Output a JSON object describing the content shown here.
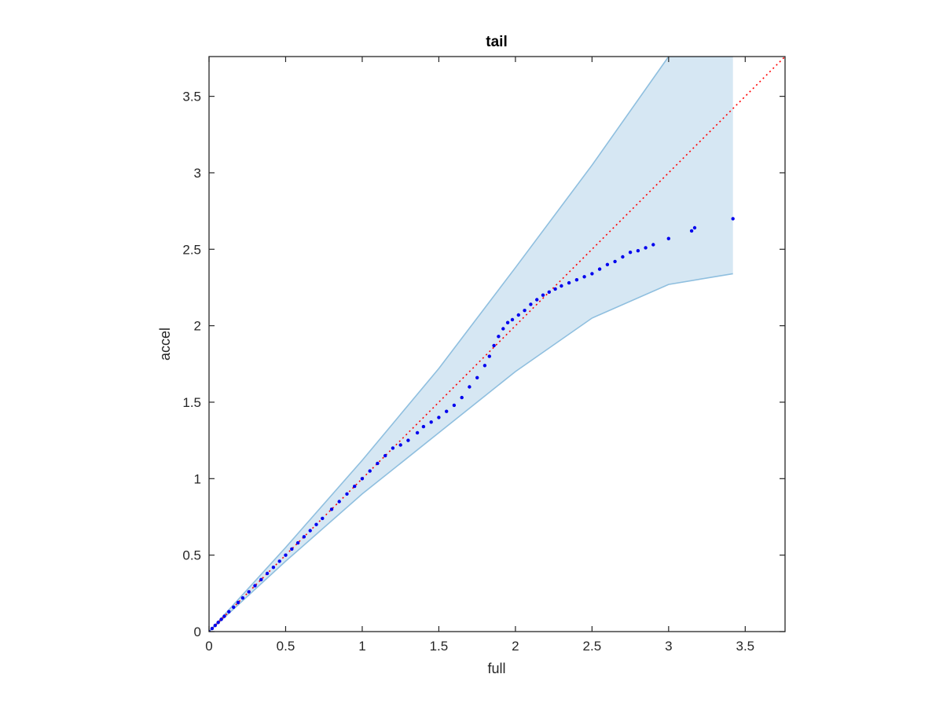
{
  "chart_data": {
    "type": "scatter",
    "title": "tail",
    "xlabel": "full",
    "ylabel": "accel",
    "xlim": [
      0,
      3.76
    ],
    "ylim": [
      0,
      3.76
    ],
    "xticks": [
      0,
      0.5,
      1,
      1.5,
      2,
      2.5,
      3,
      3.5
    ],
    "yticks": [
      0,
      0.5,
      1,
      1.5,
      2,
      2.5,
      3,
      3.5
    ],
    "xtick_labels": [
      "0",
      "0.5",
      "1",
      "1.5",
      "2",
      "2.5",
      "3",
      "3.5"
    ],
    "ytick_labels": [
      "0",
      "0.5",
      "1",
      "1.5",
      "2",
      "2.5",
      "3",
      "3.5"
    ],
    "grid": false,
    "reference_line": {
      "style": "dotted",
      "color": "#ff0000",
      "slope": 1
    },
    "confidence_band": {
      "fill": "#d6e7f3",
      "edge": "#8fbfdf",
      "x": [
        0,
        0.5,
        1,
        1.5,
        2,
        2.5,
        3,
        3.3,
        3.42
      ],
      "upper": [
        0,
        0.55,
        1.12,
        1.72,
        2.38,
        3.05,
        3.76,
        3.76,
        3.76
      ],
      "lower": [
        0,
        0.46,
        0.9,
        1.3,
        1.7,
        2.05,
        2.27,
        2.32,
        2.34
      ],
      "x_max": 3.42
    },
    "series": [
      {
        "color": "#0000ee",
        "x": [
          0,
          0.02,
          0.04,
          0.06,
          0.08,
          0.1,
          0.13,
          0.16,
          0.19,
          0.22,
          0.26,
          0.3,
          0.34,
          0.38,
          0.42,
          0.46,
          0.5,
          0.54,
          0.58,
          0.62,
          0.66,
          0.7,
          0.74,
          0.8,
          0.85,
          0.9,
          0.95,
          1.0,
          1.05,
          1.1,
          1.15,
          1.2,
          1.25,
          1.3,
          1.36,
          1.4,
          1.45,
          1.5,
          1.55,
          1.6,
          1.65,
          1.7,
          1.75,
          1.8,
          1.83,
          1.86,
          1.89,
          1.92,
          1.95,
          1.98,
          2.02,
          2.06,
          2.1,
          2.14,
          2.18,
          2.22,
          2.26,
          2.3,
          2.35,
          2.4,
          2.45,
          2.5,
          2.55,
          2.6,
          2.65,
          2.7,
          2.75,
          2.8,
          2.85,
          2.9,
          3.0,
          3.15,
          3.17,
          3.42
        ],
        "y": [
          0,
          0.02,
          0.04,
          0.06,
          0.08,
          0.1,
          0.13,
          0.16,
          0.19,
          0.22,
          0.26,
          0.3,
          0.34,
          0.38,
          0.42,
          0.46,
          0.5,
          0.54,
          0.58,
          0.62,
          0.66,
          0.7,
          0.74,
          0.8,
          0.85,
          0.9,
          0.95,
          1.0,
          1.05,
          1.1,
          1.15,
          1.2,
          1.22,
          1.25,
          1.3,
          1.34,
          1.37,
          1.4,
          1.44,
          1.48,
          1.53,
          1.6,
          1.66,
          1.74,
          1.8,
          1.87,
          1.93,
          1.98,
          2.02,
          2.04,
          2.07,
          2.1,
          2.14,
          2.17,
          2.2,
          2.22,
          2.24,
          2.26,
          2.28,
          2.3,
          2.32,
          2.34,
          2.37,
          2.4,
          2.42,
          2.45,
          2.48,
          2.49,
          2.51,
          2.53,
          2.57,
          2.62,
          2.64,
          2.7
        ]
      }
    ]
  }
}
